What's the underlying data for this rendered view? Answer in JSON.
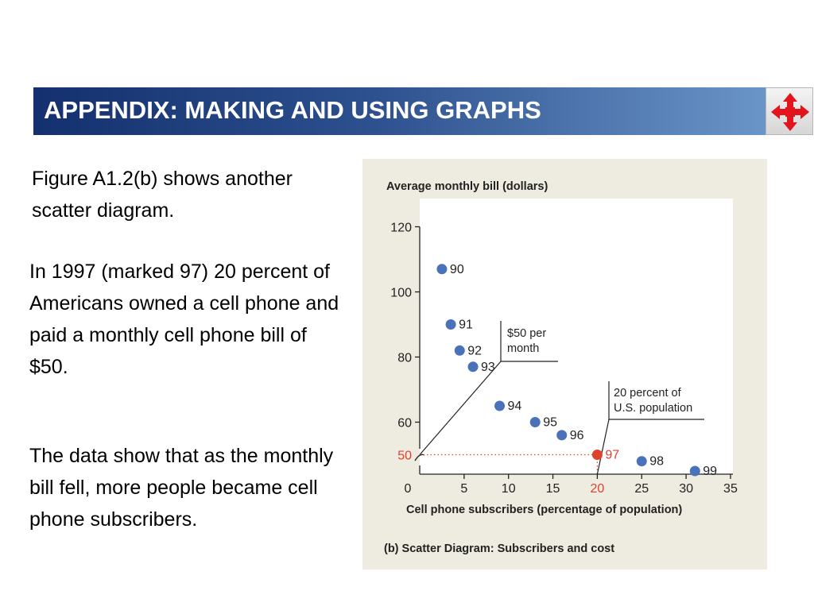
{
  "header": {
    "title": "APPENDIX: MAKING AND USING GRAPHS",
    "nav_icon": "four-way-arrows-icon",
    "nav_color": "#e3141b"
  },
  "body": {
    "intro": "Figure A1.2(b) shows another scatter diagram.",
    "para1": "In 1997 (marked 97) 20 percent of Americans owned a cell phone and paid a monthly cell phone bill of $50.",
    "para2": "The data show that as the monthly bill fell, more people became cell phone subscribers."
  },
  "chart_data": {
    "type": "scatter",
    "title": "",
    "ylabel": "Average monthly bill (dollars)",
    "xlabel": "Cell phone subscribers (percentage of population)",
    "caption": "(b)  Scatter Diagram:  Subscribers and cost",
    "xlim": [
      0,
      35
    ],
    "ylim": [
      40,
      120
    ],
    "y_axis_break": true,
    "x_origin_label": "0",
    "xticks": [
      5,
      10,
      15,
      20,
      25,
      30,
      35
    ],
    "yticks": [
      60,
      80,
      100,
      120
    ],
    "grid": false,
    "points": [
      {
        "label": "90",
        "x": 2.5,
        "y": 107
      },
      {
        "label": "91",
        "x": 3.5,
        "y": 90
      },
      {
        "label": "92",
        "x": 4.5,
        "y": 82
      },
      {
        "label": "93",
        "x": 6.0,
        "y": 77
      },
      {
        "label": "94",
        "x": 9.0,
        "y": 65
      },
      {
        "label": "95",
        "x": 13.0,
        "y": 60
      },
      {
        "label": "96",
        "x": 16.0,
        "y": 56
      },
      {
        "label": "97",
        "x": 20.0,
        "y": 50,
        "highlight": true
      },
      {
        "label": "98",
        "x": 25.0,
        "y": 48
      },
      {
        "label": "99",
        "x": 31.0,
        "y": 45
      }
    ],
    "highlight": {
      "x": 20,
      "y": 50,
      "x_label": "20",
      "y_label": "50",
      "callout_y": "$50 per month",
      "callout_y_lines": [
        "$50 per",
        "month"
      ],
      "callout_x": "20 percent of U.S. population",
      "callout_x_lines": [
        "20 percent of",
        "U.S. population"
      ]
    },
    "colors": {
      "point": "#4a72b8",
      "highlight": "#e0412b",
      "axis": "#222222",
      "plot_bg": "#ffffff",
      "panel_bg": "#eeebe0"
    }
  }
}
